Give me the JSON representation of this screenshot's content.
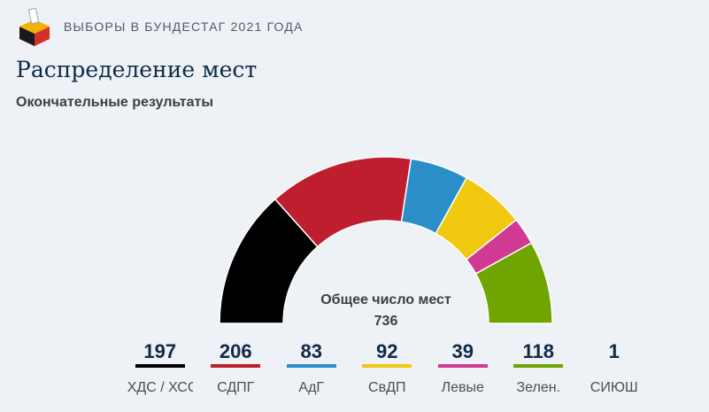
{
  "header": {
    "brand": "ВЫБОРЫ В БУНДЕСТАГ 2021 ГОДА",
    "logo_icon": "ballot-box-icon"
  },
  "page": {
    "title": "Распределение мест",
    "subtitle": "Окончательные результаты"
  },
  "chart_data": {
    "type": "pie",
    "variant": "half-donut parliament seats",
    "total_label": "Общее число мест",
    "total": 736,
    "categories": [
      "ХДС / ХСС",
      "СДПГ",
      "АдГ",
      "СвДП",
      "Левые",
      "Зелен.",
      "СИЮШ"
    ],
    "values": [
      197,
      206,
      83,
      92,
      39,
      118,
      1
    ],
    "arc_order": [
      "ХДС / ХСС",
      "СДПГ",
      "АдГ",
      "СвДП",
      "Левые",
      "Зелен."
    ],
    "colors": [
      "#000000",
      "#be1e2d",
      "#2a8fc9",
      "#f0c80f",
      "#d03a92",
      "#6ea500",
      "#ffffff"
    ]
  },
  "legend": [
    {
      "seats": "197",
      "party": "ХДС / ХСС",
      "color": "#000000"
    },
    {
      "seats": "206",
      "party": "СДПГ",
      "color": "#be1e2d"
    },
    {
      "seats": "83",
      "party": "АдГ",
      "color": "#2a8fc9"
    },
    {
      "seats": "92",
      "party": "СвДП",
      "color": "#f0c80f"
    },
    {
      "seats": "39",
      "party": "Левые",
      "color": "#d03a92"
    },
    {
      "seats": "118",
      "party": "Зелен.",
      "color": "#6ea500"
    },
    {
      "seats": "1",
      "party": "СИЮШ",
      "color": "#eef1f5"
    }
  ]
}
